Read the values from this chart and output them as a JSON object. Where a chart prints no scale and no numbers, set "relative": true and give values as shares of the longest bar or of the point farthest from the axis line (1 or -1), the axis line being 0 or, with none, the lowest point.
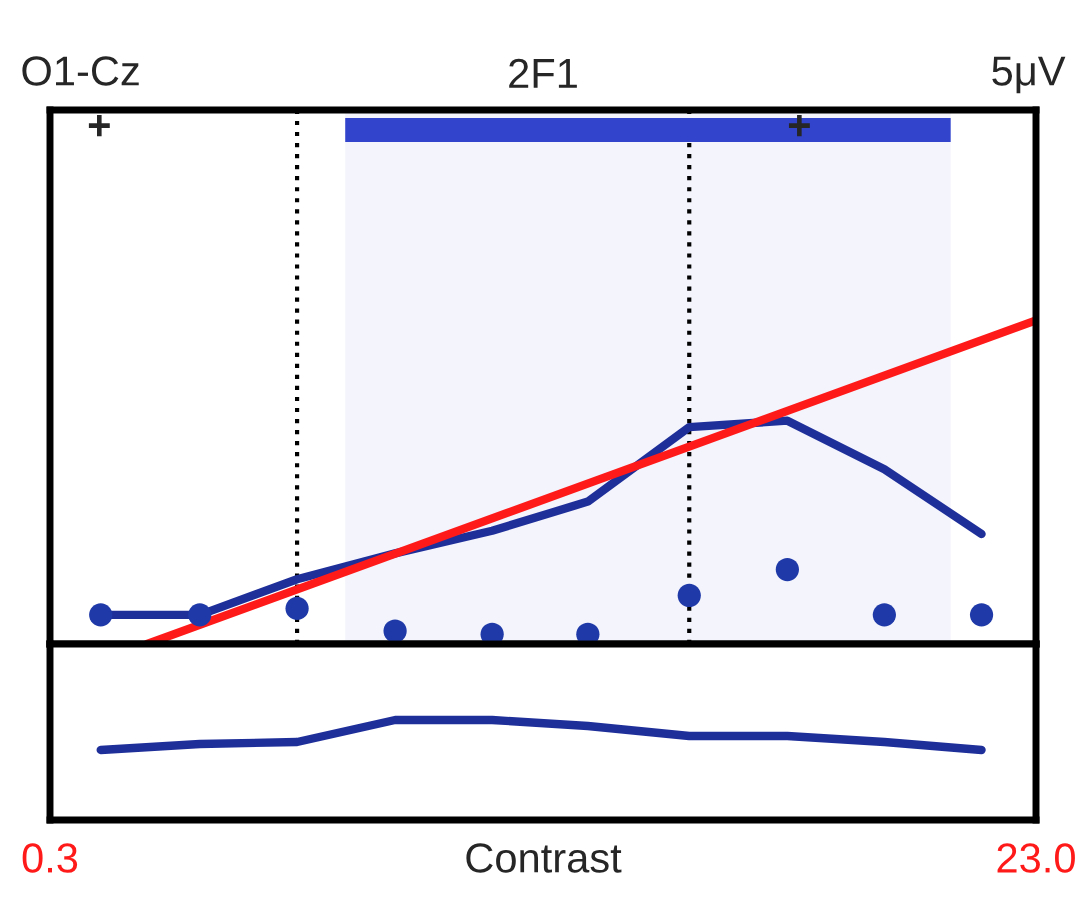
{
  "chart_data": [
    {
      "type": "line",
      "title": "2F1",
      "relative": true,
      "log": "x",
      "tick_labels": false,
      "xlim": [
        0.3,
        23.0
      ],
      "legend": false,
      "x": [
        0.375,
        0.58,
        0.89,
        1.37,
        2.1,
        3.2,
        5.0,
        7.7,
        11.8,
        18.1
      ],
      "series": [
        {
          "type": "line",
          "color": "#1f2f9a",
          "values": [
            0.09,
            0.09,
            0.2,
            0.28,
            0.35,
            0.44,
            0.67,
            0.69,
            0.54,
            0.34
          ]
        },
        {
          "type": "scatter",
          "color": "#1f3aa8",
          "marker": "circle",
          "values": [
            0.09,
            0.09,
            0.11,
            0.04,
            0.03,
            0.03,
            0.15,
            0.23,
            0.09,
            0.09
          ]
        },
        {
          "type": "line",
          "color": "#ff1a1a",
          "x": [
            0.46,
            23.0
          ],
          "values": [
            0,
            1
          ]
        }
      ],
      "ref_lines": [
        {
          "axis": "x",
          "value": 0.89,
          "color": "#000000",
          "line_style": "dotted"
        },
        {
          "axis": "x",
          "value": 5.0,
          "color": "#000000",
          "line_style": "dotted"
        }
      ],
      "bands": [
        {
          "axis": "x",
          "from": 1.1,
          "to": 15.8,
          "color": "#3344cc"
        }
      ],
      "annotations": [
        "O1-Cz",
        "5μV",
        "+",
        "+"
      ]
    },
    {
      "type": "line",
      "relative": true,
      "log": "x",
      "xlim": [
        0.3,
        23.0
      ],
      "tick_labels": "x",
      "legend": false,
      "xticks": [
        {
          "value": 0.3,
          "label": "0.3"
        },
        {
          "value": 23.0,
          "label": "23.0"
        }
      ],
      "xlabel": "Contrast",
      "x": [
        0.375,
        0.58,
        0.89,
        1.37,
        2.1,
        3.2,
        5.0,
        7.7,
        11.8,
        18.1
      ],
      "series": [
        {
          "type": "line",
          "color": "#1f2f9a",
          "values": [
            0.7,
            0.76,
            0.78,
            1,
            1,
            0.94,
            0.84,
            0.84,
            0.78,
            0.7
          ]
        }
      ]
    }
  ]
}
